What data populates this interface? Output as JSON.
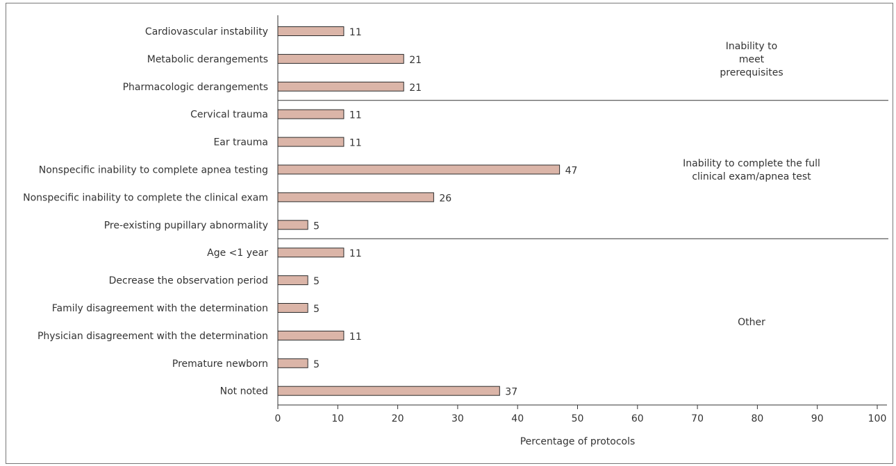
{
  "chart_data": {
    "type": "bar",
    "orientation": "horizontal",
    "categories": [
      "Cardiovascular instability",
      "Metabolic derangements",
      "Pharmacologic derangements",
      "Cervical trauma",
      "Ear trauma",
      "Nonspecific inability to complete apnea testing",
      "Nonspecific inability to complete the clinical exam",
      "Pre-existing pupillary abnormality",
      "Age <1 year",
      "Decrease the observation period",
      "Family disagreement with the determination",
      "Physician disagreement with the determination",
      "Premature newborn",
      "Not noted"
    ],
    "values": [
      11,
      21,
      21,
      11,
      11,
      47,
      26,
      5,
      11,
      5,
      5,
      11,
      5,
      37
    ],
    "groups": [
      {
        "label_lines": [
          "Inability to",
          "meet",
          "prerequisites"
        ],
        "start": 0,
        "end": 2
      },
      {
        "label_lines": [
          "Inability to complete the full",
          "clinical exam/apnea test"
        ],
        "start": 3,
        "end": 7
      },
      {
        "label_lines": [
          "Other"
        ],
        "start": 8,
        "end": 13
      }
    ],
    "xlabel": "Percentage of protocols",
    "xlim": [
      0,
      100
    ],
    "xticks": [
      "0",
      "10",
      "20",
      "30",
      "40",
      "50",
      "60",
      "70",
      "80",
      "90",
      "100"
    ],
    "bar_color": "#dbb5a8",
    "bar_edge_color": "#2b2b2b",
    "grid": false
  }
}
